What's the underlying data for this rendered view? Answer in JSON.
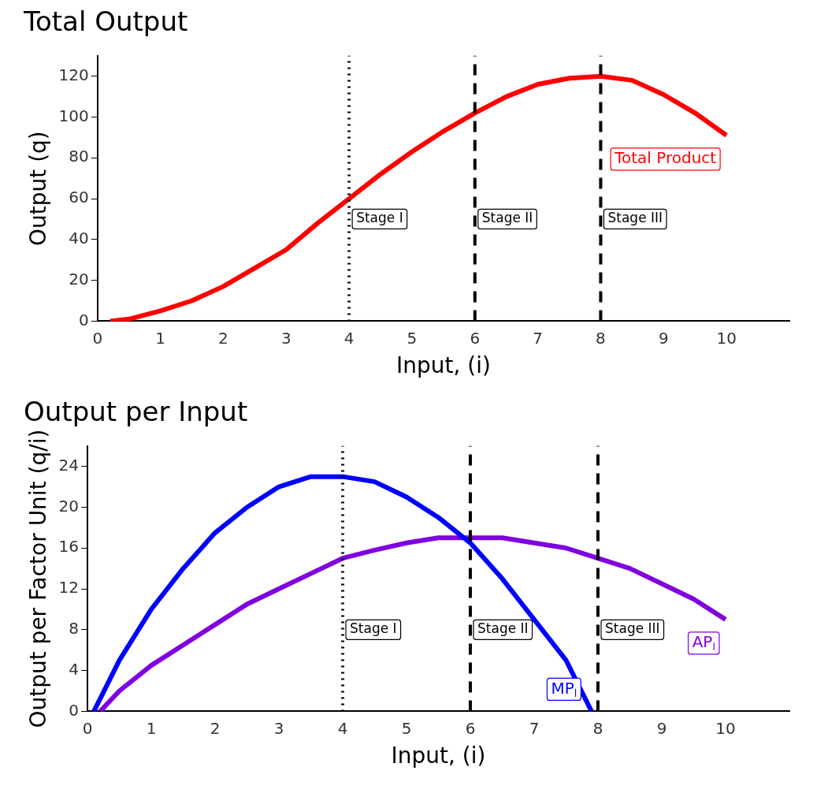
{
  "chart_data": [
    {
      "type": "line",
      "title": "Total Output",
      "xlabel": "Input, (i)",
      "ylabel": "Output (q)",
      "xlim": [
        0,
        11
      ],
      "xticks": [
        0,
        1,
        2,
        3,
        4,
        5,
        6,
        7,
        8,
        9,
        10
      ],
      "ylim": [
        0,
        130
      ],
      "yticks": [
        0,
        20,
        40,
        60,
        80,
        100,
        120
      ],
      "grid": false,
      "legend": false,
      "series": [
        {
          "name": "Total Product",
          "color": "#ff0000",
          "x": [
            0.2,
            0.5,
            1,
            1.5,
            2,
            2.5,
            3,
            3.5,
            4,
            4.5,
            5,
            5.5,
            6,
            6.5,
            7,
            7.5,
            8,
            8.5,
            9,
            9.5,
            10
          ],
          "values": [
            0,
            1,
            5,
            10,
            17,
            26,
            35,
            48,
            60,
            72,
            83,
            93,
            102,
            110,
            116,
            119,
            120,
            118,
            111,
            102,
            91
          ]
        }
      ],
      "ref_lines": [
        {
          "axis": "x",
          "value": 4,
          "line_style": "dotted",
          "color": "#000000"
        },
        {
          "axis": "x",
          "value": 6,
          "line_style": "dashed",
          "color": "#000000"
        },
        {
          "axis": "x",
          "value": 8,
          "line_style": "dashed",
          "color": "#000000"
        }
      ],
      "annotations": [
        {
          "text": "Stage I",
          "x": 4,
          "y": 50
        },
        {
          "text": "Stage II",
          "x": 6,
          "y": 50
        },
        {
          "text": "Stage III",
          "x": 8,
          "y": 50
        }
      ]
    },
    {
      "type": "line",
      "title": "Output per Input",
      "xlabel": "Input, (i)",
      "ylabel": "Output per Factor Unit (q/i)",
      "xlim": [
        0,
        11
      ],
      "xticks": [
        0,
        1,
        2,
        3,
        4,
        5,
        6,
        7,
        8,
        9,
        10
      ],
      "ylim": [
        0,
        26
      ],
      "yticks": [
        0,
        4,
        8,
        12,
        16,
        20,
        24
      ],
      "grid": false,
      "legend": false,
      "series": [
        {
          "name": "MP$_{l}$",
          "color": "#0000ff",
          "x": [
            0.1,
            0.5,
            1,
            1.5,
            2,
            2.5,
            3,
            3.5,
            4,
            4.5,
            5,
            5.5,
            6,
            6.5,
            7,
            7.5,
            7.9
          ],
          "values": [
            0,
            5,
            10,
            14,
            17.5,
            20,
            22,
            23,
            23,
            22.5,
            21,
            19,
            16.5,
            13,
            9,
            5,
            0
          ]
        },
        {
          "name": "AP$_{l}$",
          "color": "#8000e0",
          "x": [
            0.2,
            0.5,
            1,
            1.5,
            2,
            2.5,
            3,
            3.5,
            4,
            4.5,
            5,
            5.5,
            6,
            6.5,
            7,
            7.5,
            8,
            8.5,
            9,
            9.5,
            10
          ],
          "values": [
            0,
            2,
            4.5,
            6.5,
            8.5,
            10.5,
            12,
            13.5,
            15,
            15.8,
            16.5,
            17,
            17,
            17,
            16.5,
            16,
            15,
            14,
            12.5,
            11,
            9
          ]
        }
      ],
      "ref_lines": [
        {
          "axis": "x",
          "value": 4,
          "line_style": "dotted",
          "color": "#000000"
        },
        {
          "axis": "x",
          "value": 6,
          "line_style": "dashed",
          "color": "#000000"
        },
        {
          "axis": "x",
          "value": 8,
          "line_style": "dashed",
          "color": "#000000"
        }
      ],
      "annotations": [
        {
          "text": "Stage I",
          "x": 4,
          "y": 8
        },
        {
          "text": "Stage II",
          "x": 6,
          "y": 8
        },
        {
          "text": "Stage III",
          "x": 8,
          "y": 8
        }
      ]
    }
  ]
}
